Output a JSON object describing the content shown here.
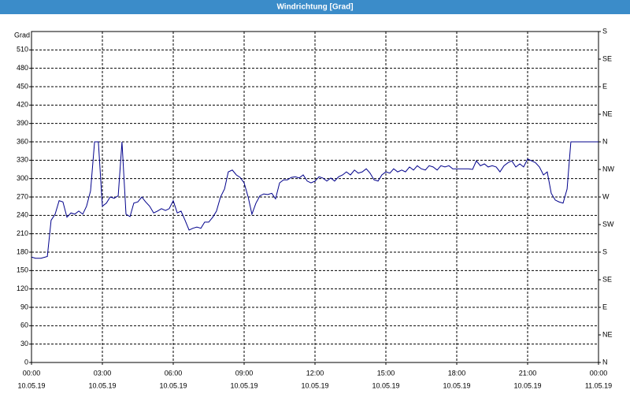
{
  "chart_data": {
    "type": "line",
    "title": "Windrichtung [Grad]",
    "ylabel": "Grad",
    "xlim": [
      0,
      24
    ],
    "xticks": [
      {
        "value": 0,
        "label": "00:00",
        "date": "10.05.19"
      },
      {
        "value": 3,
        "label": "03:00",
        "date": "10.05.19"
      },
      {
        "value": 6,
        "label": "06:00",
        "date": "10.05.19"
      },
      {
        "value": 9,
        "label": "09:00",
        "date": "10.05.19"
      },
      {
        "value": 12,
        "label": "12:00",
        "date": "10.05.19"
      },
      {
        "value": 15,
        "label": "15:00",
        "date": "10.05.19"
      },
      {
        "value": 18,
        "label": "18:00",
        "date": "10.05.19"
      },
      {
        "value": 21,
        "label": "21:00",
        "date": "10.05.19"
      },
      {
        "value": 24,
        "label": "00:00",
        "date": "11.05.19"
      }
    ],
    "ylim": [
      0,
      540
    ],
    "yticks": [
      0,
      30,
      60,
      90,
      120,
      150,
      180,
      210,
      240,
      270,
      300,
      330,
      360,
      390,
      420,
      450,
      480,
      510
    ],
    "y2lim": [
      0,
      540
    ],
    "y2ticks": [
      {
        "value": 0,
        "label": "N"
      },
      {
        "value": 45,
        "label": "NE"
      },
      {
        "value": 90,
        "label": "E"
      },
      {
        "value": 135,
        "label": "SE"
      },
      {
        "value": 180,
        "label": "S"
      },
      {
        "value": 225,
        "label": "SW"
      },
      {
        "value": 270,
        "label": "W"
      },
      {
        "value": 315,
        "label": "NW"
      },
      {
        "value": 360,
        "label": "N"
      },
      {
        "value": 405,
        "label": "NE"
      },
      {
        "value": 450,
        "label": "E"
      },
      {
        "value": 495,
        "label": "SE"
      },
      {
        "value": 540,
        "label": "S"
      }
    ],
    "grid": true,
    "series": [
      {
        "color": "#00008b",
        "x": [
          0,
          0.17,
          0.4,
          0.67,
          0.83,
          1,
          1.17,
          1.33,
          1.5,
          1.67,
          1.83,
          2,
          2.17,
          2.33,
          2.5,
          2.67,
          2.83,
          3,
          3.17,
          3.33,
          3.5,
          3.67,
          3.83,
          4,
          4.17,
          4.33,
          4.5,
          4.67,
          4.83,
          5,
          5.17,
          5.33,
          5.5,
          5.67,
          5.83,
          6,
          6.17,
          6.33,
          6.5,
          6.67,
          6.83,
          7,
          7.17,
          7.33,
          7.5,
          7.67,
          7.83,
          8,
          8.17,
          8.33,
          8.5,
          8.67,
          8.83,
          9,
          9.17,
          9.33,
          9.5,
          9.67,
          9.83,
          10,
          10.17,
          10.33,
          10.5,
          10.67,
          10.83,
          11,
          11.17,
          11.33,
          11.5,
          11.67,
          11.83,
          12,
          12.17,
          12.33,
          12.5,
          12.67,
          12.83,
          13,
          13.17,
          13.33,
          13.5,
          13.67,
          13.83,
          14,
          14.17,
          14.33,
          14.5,
          14.67,
          14.83,
          15,
          15.17,
          15.33,
          15.5,
          15.67,
          15.83,
          16,
          16.17,
          16.33,
          16.5,
          16.67,
          16.83,
          17,
          17.17,
          17.33,
          17.5,
          17.67,
          17.83,
          18,
          18.17,
          18.33,
          18.5,
          18.67,
          18.83,
          19,
          19.17,
          19.33,
          19.5,
          19.67,
          19.83,
          20,
          20.17,
          20.33,
          20.5,
          20.67,
          20.83,
          21,
          21.17,
          21.33,
          21.5,
          21.67,
          21.83,
          22,
          22.17,
          22.33,
          22.5,
          22.67,
          22.83,
          24
        ],
        "values": [
          172,
          170,
          170,
          173,
          232,
          242,
          264,
          262,
          237,
          244,
          242,
          247,
          242,
          255,
          280,
          360,
          360,
          255,
          260,
          270,
          268,
          272,
          360,
          242,
          238,
          260,
          262,
          270,
          262,
          255,
          244,
          247,
          251,
          248,
          251,
          264,
          244,
          247,
          232,
          216,
          219,
          221,
          219,
          229,
          229,
          237,
          247,
          270,
          283,
          311,
          314,
          306,
          302,
          293,
          270,
          242,
          260,
          272,
          275,
          274,
          276,
          267,
          293,
          298,
          298,
          302,
          303,
          301,
          306,
          296,
          293,
          296,
          303,
          301,
          296,
          301,
          296,
          303,
          306,
          311,
          306,
          314,
          309,
          311,
          316,
          309,
          298,
          296,
          306,
          311,
          309,
          316,
          311,
          314,
          311,
          319,
          314,
          321,
          316,
          314,
          321,
          319,
          314,
          321,
          319,
          321,
          316,
          316,
          316,
          316,
          316,
          315,
          329,
          321,
          324,
          319,
          321,
          319,
          311,
          321,
          326,
          329,
          319,
          324,
          319,
          332,
          329,
          326,
          319,
          306,
          311,
          276,
          265,
          262,
          260,
          283,
          360,
          360
        ]
      }
    ]
  }
}
